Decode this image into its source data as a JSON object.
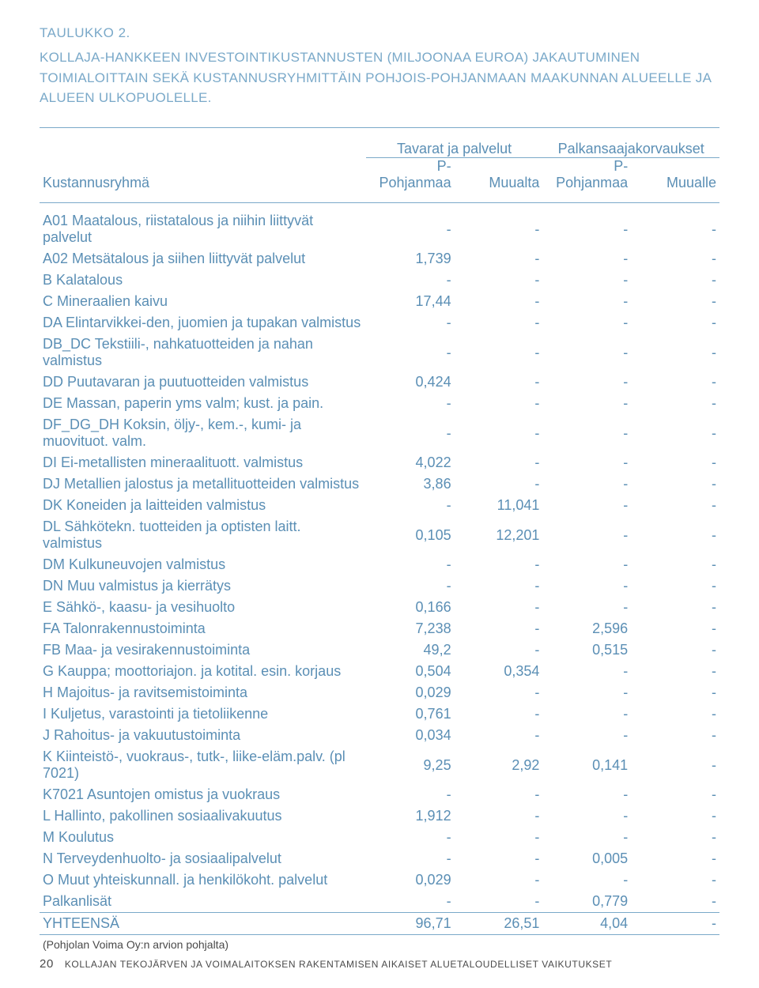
{
  "heading": {
    "label": "TAULUKKO 2.",
    "title": "KOLLAJA-HANKKEEN INVESTOINTIKUSTANNUSTEN (MILJOONAA EUROA) JAKAUTUMINEN TOIMIALOITTAIN SEKÄ KUSTANNUSRYHMITTÄIN POHJOIS-POHJANMAAN MAAKUNNAN ALUEELLE JA ALUEEN ULKOPUOLELLE."
  },
  "colors": {
    "accent": "#7aa9c9",
    "text": "#5b8fb5",
    "body": "#4a4a4a"
  },
  "header": {
    "row_label": "Kustannusryhmä",
    "group1": "Tavarat ja palvelut",
    "group2": "Palkansaajakorvaukset",
    "c1": "P-Pohjanmaa",
    "c2": "Muualta",
    "c3": "P-Pohjanmaa",
    "c4": "Muualle"
  },
  "rows": [
    {
      "label": "A01 Maatalous, riistatalous ja niihin liittyvät palvelut",
      "v": [
        "-",
        "-",
        "-",
        "-"
      ]
    },
    {
      "label": "A02 Metsätalous ja siihen liittyvät palvelut",
      "v": [
        "1,739",
        "-",
        "-",
        "-"
      ]
    },
    {
      "label": "B Kalatalous",
      "v": [
        "-",
        "-",
        "-",
        "-"
      ]
    },
    {
      "label": "C Mineraalien kaivu",
      "v": [
        "17,44",
        "-",
        "-",
        "-"
      ]
    },
    {
      "label": "DA Elintarvikkei-den, juomien ja tupakan valmistus",
      "v": [
        "-",
        "-",
        "-",
        "-"
      ]
    },
    {
      "label": "DB_DC Tekstiili-, nahkatuotteiden ja nahan valmistus",
      "v": [
        "-",
        "-",
        "-",
        "-"
      ]
    },
    {
      "label": "DD Puutavaran ja puutuotteiden valmistus",
      "v": [
        "0,424",
        "-",
        "-",
        "-"
      ]
    },
    {
      "label": "DE Massan, paperin yms valm; kust. ja pain.",
      "v": [
        "-",
        "-",
        "-",
        "-"
      ]
    },
    {
      "label": "DF_DG_DH Koksin, öljy-, kem.-, kumi- ja muovituot. valm.",
      "v": [
        "-",
        "-",
        "-",
        "-"
      ]
    },
    {
      "label": "DI Ei-metallisten mineraalituott. valmistus",
      "v": [
        "4,022",
        "-",
        "-",
        "-"
      ]
    },
    {
      "label": "DJ Metallien jalostus ja metallituotteiden valmistus",
      "v": [
        "3,86",
        "-",
        "-",
        "-"
      ]
    },
    {
      "label": "DK Koneiden ja laitteiden valmistus",
      "v": [
        "-",
        "11,041",
        "-",
        "-"
      ]
    },
    {
      "label": "DL Sähkötekn. tuotteiden ja optisten laitt. valmistus",
      "v": [
        "0,105",
        "12,201",
        "-",
        "-"
      ]
    },
    {
      "label": "DM Kulkuneuvojen valmistus",
      "v": [
        "-",
        "-",
        "-",
        "-"
      ]
    },
    {
      "label": "DN Muu valmistus ja kierrätys",
      "v": [
        "-",
        "-",
        "-",
        "-"
      ]
    },
    {
      "label": "E Sähkö-, kaasu- ja vesihuolto",
      "v": [
        "0,166",
        "-",
        "-",
        "-"
      ]
    },
    {
      "label": "FA Talonrakennustoiminta",
      "v": [
        "7,238",
        "-",
        "2,596",
        "-"
      ]
    },
    {
      "label": "FB Maa- ja vesirakennustoiminta",
      "v": [
        "49,2",
        "-",
        "0,515",
        "-"
      ]
    },
    {
      "label": "G Kauppa; moottoriajon. ja kotital. esin. korjaus",
      "v": [
        "0,504",
        "0,354",
        "-",
        "-"
      ]
    },
    {
      "label": "H Majoitus- ja ravitsemistoiminta",
      "v": [
        "0,029",
        "-",
        "-",
        "-"
      ]
    },
    {
      "label": "I Kuljetus, varastointi ja tietoliikenne",
      "v": [
        "0,761",
        "-",
        "-",
        "-"
      ]
    },
    {
      "label": "J Rahoitus- ja vakuutustoiminta",
      "v": [
        "0,034",
        "-",
        "-",
        "-"
      ]
    },
    {
      "label": "K Kiinteistö-, vuokraus-, tutk-, liike-eläm.palv. (pl 7021)",
      "v": [
        "9,25",
        "2,92",
        "0,141",
        "-"
      ]
    },
    {
      "label": "K7021 Asuntojen omistus ja vuokraus",
      "v": [
        "-",
        "-",
        "-",
        "-"
      ]
    },
    {
      "label": "L Hallinto, pakollinen sosiaalivakuutus",
      "v": [
        "1,912",
        "-",
        "-",
        "-"
      ]
    },
    {
      "label": "M Koulutus",
      "v": [
        "-",
        "-",
        "-",
        "-"
      ]
    },
    {
      "label": "N Terveydenhuolto- ja sosiaalipalvelut",
      "v": [
        "-",
        "-",
        "0,005",
        "-"
      ]
    },
    {
      "label": "O Muut yhteiskunnall. ja henkilökoht. palvelut",
      "v": [
        "0,029",
        "-",
        "-",
        "-"
      ]
    },
    {
      "label": "Palkanlisät",
      "v": [
        "-",
        "-",
        "0,779",
        "-"
      ]
    }
  ],
  "total": {
    "label": "YHTEENSÄ",
    "v": [
      "96,71",
      "26,51",
      "4,04",
      "-"
    ]
  },
  "footnote": "(Pohjolan Voima Oy:n arvion pohjalta)",
  "footer": {
    "page": "20",
    "title": "KOLLAJAN TEKOJÄRVEN JA VOIMALAITOKSEN RAKENTAMISEN AIKAISET ALUETALOUDELLISET VAIKUTUKSET"
  },
  "layout": {
    "col_widths_pct": [
      48,
      13,
      13,
      13,
      13
    ]
  }
}
